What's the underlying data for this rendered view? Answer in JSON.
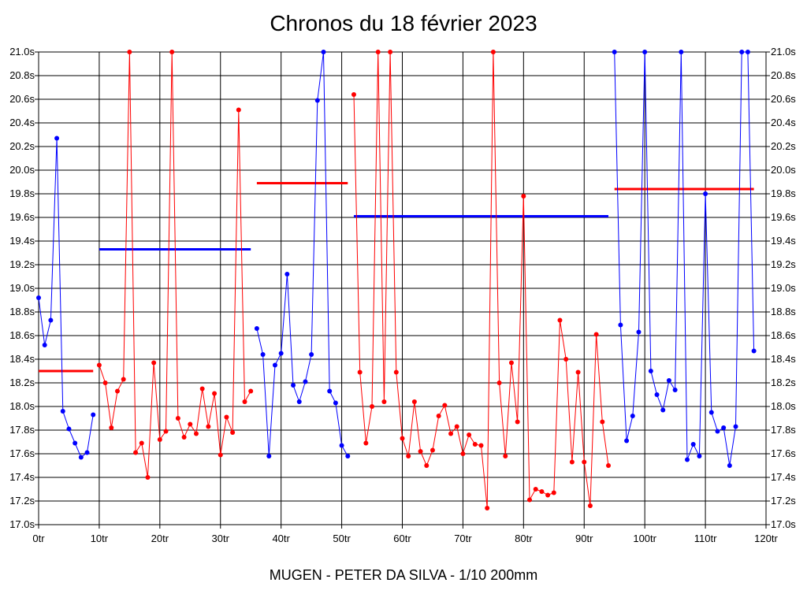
{
  "chart_data": {
    "type": "line",
    "title": "Chronos du 18 février 2023",
    "subtitle": "MUGEN - PETER DA SILVA - 1/10 200mm",
    "xlabel": "",
    "ylabel": "",
    "xlim": [
      0,
      120
    ],
    "ylim": [
      17.0,
      21.0
    ],
    "grid": true,
    "x_ticks": [
      "0tr",
      "10tr",
      "20tr",
      "30tr",
      "40tr",
      "50tr",
      "60tr",
      "70tr",
      "80tr",
      "90tr",
      "100tr",
      "110tr",
      "120tr"
    ],
    "y_ticks": [
      "21.0s",
      "20.8s",
      "20.6s",
      "20.4s",
      "20.2s",
      "20.0s",
      "19.8s",
      "19.6s",
      "19.4s",
      "19.2s",
      "19.0s",
      "18.8s",
      "18.6s",
      "18.4s",
      "18.2s",
      "18.0s",
      "17.8s",
      "17.6s",
      "17.4s",
      "17.2s",
      "17.0s"
    ],
    "colors": {
      "red": "#ff0000",
      "blue": "#0000ff",
      "grid": "#000000"
    },
    "series": [
      {
        "color": "red",
        "x": [
          0,
          9
        ],
        "values": [
          18.3,
          18.3
        ],
        "style": "average"
      },
      {
        "color": "blue",
        "x": [
          0,
          1,
          2,
          3,
          4,
          5,
          6,
          7,
          8,
          9
        ],
        "values": [
          18.92,
          18.52,
          18.73,
          20.27,
          17.96,
          17.81,
          17.69,
          17.57,
          17.61,
          17.93
        ]
      },
      {
        "color": "blue",
        "x": [
          10,
          35
        ],
        "values": [
          19.33,
          19.33
        ],
        "style": "average"
      },
      {
        "color": "red",
        "x": [
          10,
          11,
          12,
          13,
          14,
          15,
          16,
          17,
          18,
          19,
          20,
          21,
          22,
          23,
          24,
          25,
          26,
          27,
          28,
          29,
          30,
          31,
          32,
          33,
          34,
          35
        ],
        "values": [
          18.35,
          18.2,
          17.82,
          18.13,
          18.23,
          21.0,
          17.61,
          17.69,
          17.4,
          18.37,
          17.72,
          17.79,
          21.0,
          17.9,
          17.74,
          17.85,
          17.77,
          18.15,
          17.83,
          18.11,
          17.59,
          17.91,
          17.78,
          20.51,
          18.04,
          18.13
        ]
      },
      {
        "color": "red",
        "x": [
          36,
          51
        ],
        "values": [
          19.89,
          19.89
        ],
        "style": "average"
      },
      {
        "color": "blue",
        "x": [
          36,
          37,
          38,
          39,
          40,
          41,
          42,
          43,
          44,
          45,
          46,
          47,
          48,
          49,
          50,
          51
        ],
        "values": [
          18.66,
          18.44,
          17.58,
          18.35,
          18.45,
          19.12,
          18.18,
          18.04,
          18.21,
          18.44,
          20.59,
          21.0,
          18.13,
          18.03,
          17.67,
          17.58
        ]
      },
      {
        "color": "blue",
        "x": [
          52,
          94
        ],
        "values": [
          19.61,
          19.61
        ],
        "style": "average"
      },
      {
        "color": "red",
        "x": [
          52,
          53,
          54,
          55,
          56,
          57,
          58,
          59,
          60,
          61,
          62,
          63,
          64,
          65,
          66,
          67,
          68,
          69,
          70,
          71,
          72,
          73,
          74,
          75,
          76,
          77,
          78,
          79,
          80,
          81,
          82,
          83,
          84,
          85,
          86,
          87,
          88,
          89,
          90,
          91,
          92,
          93,
          94
        ],
        "values": [
          20.64,
          18.29,
          17.69,
          18.0,
          21.0,
          18.04,
          21.0,
          18.29,
          17.73,
          17.58,
          18.04,
          17.62,
          17.5,
          17.63,
          17.92,
          18.01,
          17.77,
          17.83,
          17.6,
          17.76,
          17.68,
          17.67,
          17.14,
          21.0,
          18.2,
          17.58,
          18.37,
          17.87,
          19.78,
          17.21,
          17.3,
          17.28,
          17.25,
          17.27,
          18.73,
          18.4,
          17.53,
          18.29,
          17.53,
          17.16,
          18.61,
          17.87,
          17.5
        ]
      },
      {
        "color": "red",
        "x": [
          95,
          118
        ],
        "values": [
          19.84,
          19.84
        ],
        "style": "average"
      },
      {
        "color": "blue",
        "x": [
          95,
          96,
          97,
          98,
          99,
          100,
          101,
          102,
          103,
          104,
          105,
          106,
          107,
          108,
          109,
          110,
          111,
          112,
          113,
          114,
          115,
          116,
          117,
          118
        ],
        "values": [
          21.0,
          18.69,
          17.71,
          17.92,
          18.63,
          21.0,
          18.3,
          18.1,
          17.97,
          18.22,
          18.14,
          21.0,
          17.55,
          17.68,
          17.58,
          19.8,
          17.95,
          17.79,
          17.82,
          17.5,
          17.83,
          21.0,
          21.0,
          18.47
        ]
      }
    ]
  }
}
